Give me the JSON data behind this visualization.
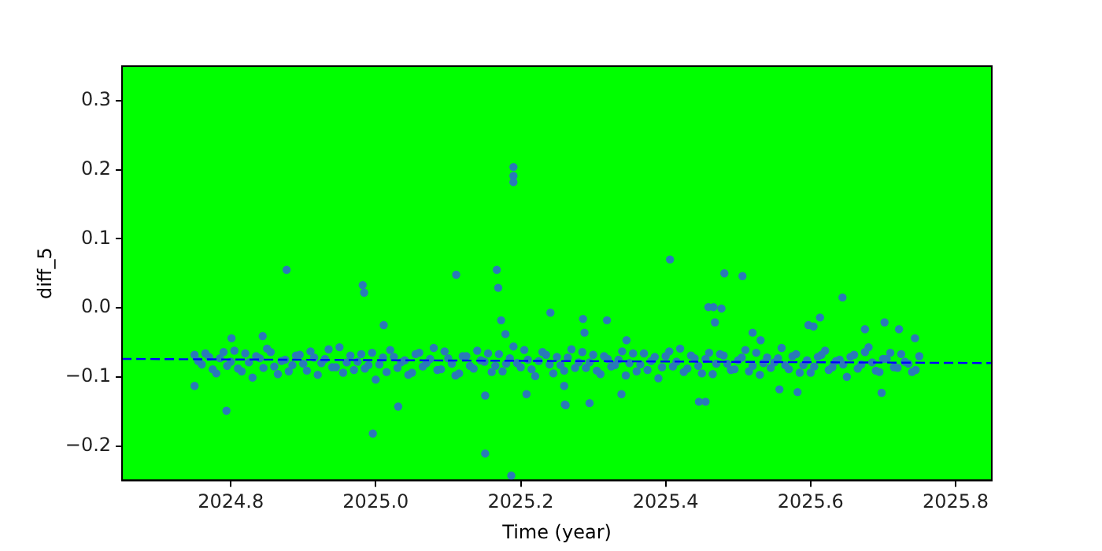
{
  "chart_data": {
    "type": "scatter",
    "xlabel": "Time (year)",
    "ylabel": "diff_5",
    "xlim": [
      2024.65,
      2025.85
    ],
    "ylim": [
      -0.25,
      0.35
    ],
    "xticks": [
      2024.8,
      {
        "value": 2025,
        "label": "2025.0"
      },
      2025.2,
      2025.4,
      2025.6,
      2025.8
    ],
    "yticks": [
      {
        "value": -0.2,
        "label": "−0.2"
      },
      {
        "value": -0.1,
        "label": "−0.1"
      },
      {
        "value": 0,
        "label": "0.0"
      },
      0.1,
      0.2,
      0.3
    ],
    "grid": false,
    "legend": false,
    "marker": "circle",
    "series": [
      {
        "color": "#2a7ab8",
        "x": [
          2024.75,
          2024.76,
          2024.77,
          2024.78,
          2024.79,
          2024.8,
          2024.81,
          2024.82,
          2024.83,
          2024.84,
          2024.85,
          2024.86,
          2024.87,
          2024.88,
          2024.89,
          2024.9,
          2024.91,
          2024.92,
          2024.93,
          2024.94,
          2024.95,
          2024.96,
          2024.97,
          2024.98,
          2024.99,
          2025.0,
          2025.01,
          2025.02,
          2025.03,
          2025.04,
          2025.05,
          2025.06,
          2025.07,
          2025.08,
          2025.09,
          2025.1,
          2025.11,
          2025.12,
          2025.13,
          2025.14,
          2025.15,
          2025.16,
          2025.17,
          2025.18,
          2025.19,
          2025.2,
          2025.21,
          2025.22,
          2025.23,
          2025.24,
          2025.25,
          2025.26,
          2025.27,
          2025.28,
          2025.29,
          2025.3,
          2025.31,
          2025.32,
          2025.33,
          2025.34,
          2025.35,
          2025.36,
          2025.37,
          2025.38,
          2025.39,
          2025.4,
          2025.41,
          2025.42,
          2025.43,
          2025.44,
          2025.45,
          2025.46,
          2025.47,
          2025.48,
          2025.49,
          2025.5,
          2025.51,
          2025.52,
          2025.53,
          2025.54,
          2025.55,
          2025.56,
          2025.57,
          2025.58,
          2025.59,
          2025.6,
          2025.61,
          2025.62,
          2025.63,
          2025.64,
          2025.65,
          2025.66,
          2025.67,
          2025.68,
          2025.69,
          2025.7,
          2025.71,
          2025.72,
          2025.73,
          2025.74,
          2025.75,
          2024.877,
          2024.982,
          2024.984,
          2025.111,
          2025.167,
          2025.169,
          2025.173,
          2025.179,
          2025.241,
          2024.794,
          2024.996,
          2025.031,
          2025.151,
          2025.187,
          2025.151,
          2025.208,
          2025.261,
          2024.75,
          2024.801,
          2025.011,
          2024.844,
          2025.19,
          2025.19,
          2025.19,
          2025.406,
          2025.481,
          2025.506,
          2025.459,
          2025.466,
          2025.477,
          2025.468,
          2025.286,
          2025.288,
          2025.319,
          2025.644,
          2025.597,
          2025.604,
          2025.613,
          2025.52,
          2025.531,
          2025.675,
          2025.702,
          2025.722,
          2025.744,
          2025.26,
          2025.262,
          2025.295,
          2025.339,
          2025.446,
          2025.455,
          2025.557,
          2025.582,
          2025.698,
          2025.346,
          2024.755,
          2024.765,
          2024.775,
          2024.785,
          2024.795,
          2024.805,
          2024.815,
          2024.825,
          2024.835,
          2024.845,
          2024.855,
          2024.865,
          2024.875,
          2024.885,
          2024.895,
          2024.905,
          2024.915,
          2024.925,
          2024.935,
          2024.945,
          2024.955,
          2024.965,
          2024.975,
          2024.985,
          2024.995,
          2025.005,
          2025.015,
          2025.025,
          2025.035,
          2025.045,
          2025.055,
          2025.065,
          2025.075,
          2025.085,
          2025.095,
          2025.105,
          2025.115,
          2025.125,
          2025.135,
          2025.145,
          2025.155,
          2025.165,
          2025.175,
          2025.185,
          2025.195,
          2025.205,
          2025.215,
          2025.225,
          2025.235,
          2025.245,
          2025.255,
          2025.265,
          2025.275,
          2025.285,
          2025.295,
          2025.305,
          2025.315,
          2025.325,
          2025.335,
          2025.345,
          2025.355,
          2025.365,
          2025.375,
          2025.385,
          2025.395,
          2025.405,
          2025.415,
          2025.425,
          2025.435,
          2025.445,
          2025.455,
          2025.465,
          2025.475,
          2025.485,
          2025.495,
          2025.505,
          2025.515,
          2025.525,
          2025.535,
          2025.545,
          2025.555,
          2025.565,
          2025.575,
          2025.585,
          2025.595,
          2025.605,
          2025.615,
          2025.625,
          2025.635,
          2025.645,
          2025.655,
          2025.665,
          2025.675,
          2025.685,
          2025.695,
          2025.705,
          2025.715,
          2025.725,
          2025.735,
          2025.745
        ],
        "values": [
          -0.068,
          -0.082,
          -0.071,
          -0.095,
          -0.064,
          -0.078,
          -0.088,
          -0.066,
          -0.101,
          -0.073,
          -0.059,
          -0.085,
          -0.077,
          -0.092,
          -0.069,
          -0.081,
          -0.063,
          -0.097,
          -0.074,
          -0.086,
          -0.057,
          -0.079,
          -0.09,
          -0.067,
          -0.083,
          -0.104,
          -0.072,
          -0.061,
          -0.087,
          -0.076,
          -0.094,
          -0.065,
          -0.08,
          -0.058,
          -0.089,
          -0.073,
          -0.098,
          -0.07,
          -0.084,
          -0.062,
          -0.078,
          -0.093,
          -0.067,
          -0.081,
          -0.056,
          -0.086,
          -0.075,
          -0.099,
          -0.064,
          -0.082,
          -0.071,
          -0.091,
          -0.06,
          -0.079,
          -0.087,
          -0.068,
          -0.096,
          -0.074,
          -0.083,
          -0.063,
          -0.08,
          -0.092,
          -0.066,
          -0.077,
          -0.102,
          -0.07,
          -0.085,
          -0.059,
          -0.088,
          -0.073,
          -0.095,
          -0.065,
          -0.081,
          -0.069,
          -0.09,
          -0.076,
          -0.061,
          -0.084,
          -0.097,
          -0.072,
          -0.079,
          -0.058,
          -0.089,
          -0.067,
          -0.083,
          -0.094,
          -0.071,
          -0.062,
          -0.086,
          -0.075,
          -0.1,
          -0.068,
          -0.082,
          -0.057,
          -0.091,
          -0.074,
          -0.065,
          -0.087,
          -0.078,
          -0.093,
          -0.07,
          0.055,
          0.033,
          0.022,
          0.048,
          0.055,
          0.029,
          -0.018,
          -0.038,
          -0.007,
          -0.149,
          -0.182,
          -0.143,
          -0.211,
          -0.243,
          -0.127,
          -0.125,
          -0.14,
          -0.113,
          -0.044,
          -0.025,
          -0.041,
          0.204,
          0.191,
          0.182,
          0.07,
          0.05,
          0.046,
          0.001,
          0.001,
          -0.001,
          -0.021,
          -0.016,
          -0.036,
          -0.018,
          0.015,
          -0.025,
          -0.027,
          -0.014,
          -0.036,
          -0.047,
          -0.031,
          -0.021,
          -0.031,
          -0.044,
          -0.113,
          -0.141,
          -0.138,
          -0.125,
          -0.136,
          -0.136,
          -0.118,
          -0.122,
          -0.123,
          -0.047,
          -0.077,
          -0.066,
          -0.089,
          -0.073,
          -0.084,
          -0.062,
          -0.092,
          -0.079,
          -0.07,
          -0.087,
          -0.064,
          -0.096,
          -0.075,
          -0.083,
          -0.068,
          -0.091,
          -0.072,
          -0.08,
          -0.06,
          -0.086,
          -0.094,
          -0.069,
          -0.078,
          -0.088,
          -0.065,
          -0.082,
          -0.093,
          -0.071,
          -0.079,
          -0.097,
          -0.067,
          -0.085,
          -0.074,
          -0.09,
          -0.063,
          -0.081,
          -0.095,
          -0.07,
          -0.088,
          -0.076,
          -0.066,
          -0.084,
          -0.092,
          -0.073,
          -0.08,
          -0.061,
          -0.089,
          -0.077,
          -0.068,
          -0.095,
          -0.083,
          -0.072,
          -0.087,
          -0.064,
          -0.079,
          -0.091,
          -0.07,
          -0.085,
          -0.075,
          -0.098,
          -0.066,
          -0.082,
          -0.09,
          -0.071,
          -0.086,
          -0.063,
          -0.078,
          -0.093,
          -0.069,
          -0.084,
          -0.074,
          -0.096,
          -0.067,
          -0.081,
          -0.089,
          -0.072,
          -0.092,
          -0.065,
          -0.08,
          -0.087,
          -0.073,
          -0.083,
          -0.07,
          -0.094,
          -0.076,
          -0.085,
          -0.068,
          -0.09,
          -0.077,
          -0.082,
          -0.071,
          -0.088,
          -0.064,
          -0.079,
          -0.093,
          -0.074,
          -0.086,
          -0.067,
          -0.081,
          -0.09
        ]
      },
      {
        "type": "line",
        "color": "#0000ff",
        "line_style": "dashed",
        "marker": "none",
        "x": [
          2024.65,
          2025.85
        ],
        "values": [
          -0.074,
          -0.08
        ]
      }
    ]
  }
}
